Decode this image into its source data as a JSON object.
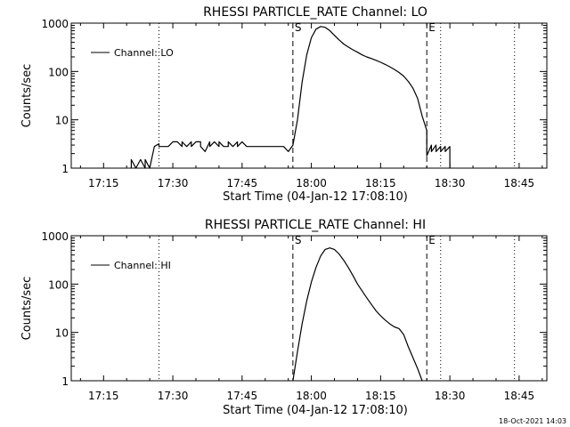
{
  "timestamp": "18-Oct-2021 14:03",
  "chart_data": [
    {
      "type": "line",
      "title": "RHESSI PARTICLE_RATE Channel: LO",
      "xlabel": "Start Time (04-Jan-12 17:08:10)",
      "ylabel": "Counts/sec",
      "y_scale": "log",
      "ylim": [
        1,
        1000
      ],
      "xlim": [
        "17:08",
        "18:51"
      ],
      "x_ticks": [
        "17:15",
        "17:30",
        "17:45",
        "18:00",
        "18:15",
        "18:30",
        "18:45"
      ],
      "y_ticks": [
        "1",
        "10",
        "100",
        "1000"
      ],
      "legend": {
        "label": "Channel: LO",
        "position": "top-left"
      },
      "markers": [
        {
          "label": "S",
          "time": "17:56",
          "style": "dashed"
        },
        {
          "label": "E",
          "time": "18:25",
          "style": "dashed"
        },
        {
          "label": "",
          "time": "17:27",
          "style": "dotted"
        },
        {
          "label": "",
          "time": "18:28",
          "style": "dotted"
        },
        {
          "label": "",
          "time": "18:44",
          "style": "dotted"
        }
      ],
      "series": [
        {
          "name": "Channel: LO",
          "x": [
            "17:21",
            "17:21",
            "17:22",
            "17:22",
            "17:23",
            "17:24",
            "17:24",
            "17:25",
            "17:26",
            "17:26",
            "17:27",
            "17:27",
            "17:28",
            "17:29",
            "17:30",
            "17:31",
            "17:32",
            "17:32",
            "17:33",
            "17:34",
            "17:34",
            "17:35",
            "17:36",
            "17:36",
            "17:37",
            "17:38",
            "17:38",
            "17:39",
            "17:40",
            "17:40",
            "17:41",
            "17:42",
            "17:42",
            "17:43",
            "17:44",
            "17:44",
            "17:45",
            "17:46",
            "17:46",
            "17:47",
            "17:48",
            "17:48",
            "17:49",
            "17:50",
            "17:50",
            "17:51",
            "17:52",
            "17:52",
            "17:53",
            "17:54",
            "17:55",
            "17:56",
            "17:57",
            "17:58",
            "17:59",
            "18:00",
            "18:01",
            "18:02",
            "18:03",
            "18:04",
            "18:05",
            "18:06",
            "18:07",
            "18:08",
            "18:09",
            "18:10",
            "18:11",
            "18:12",
            "18:13",
            "18:14",
            "18:15",
            "18:16",
            "18:17",
            "18:18",
            "18:19",
            "18:20",
            "18:21",
            "18:22",
            "18:23",
            "18:24",
            "18:25",
            "18:25",
            "18:26",
            "18:26",
            "18:27",
            "18:27",
            "18:28",
            "18:28",
            "18:29",
            "18:29",
            "18:30",
            "18:30"
          ],
          "y": [
            1.0,
            1.5,
            1.0,
            1.0,
            1.5,
            1.0,
            1.5,
            1.0,
            2.8,
            2.8,
            3.2,
            2.8,
            2.8,
            2.8,
            3.5,
            3.5,
            2.8,
            3.5,
            2.8,
            3.5,
            2.8,
            3.5,
            3.5,
            2.8,
            2.2,
            3.5,
            2.8,
            3.5,
            2.8,
            3.5,
            2.8,
            2.8,
            3.5,
            2.8,
            3.5,
            2.8,
            3.5,
            2.8,
            2.8,
            2.8,
            2.8,
            2.8,
            2.8,
            2.8,
            2.8,
            2.8,
            2.8,
            2.8,
            2.8,
            2.8,
            2.2,
            3.0,
            10,
            60,
            220,
            500,
            750,
            850,
            820,
            700,
            560,
            450,
            370,
            320,
            280,
            250,
            220,
            200,
            185,
            170,
            155,
            140,
            125,
            110,
            95,
            80,
            62,
            45,
            28,
            12,
            6,
            1.8,
            3.0,
            2.2,
            3.0,
            2.2,
            2.8,
            2.2,
            2.8,
            2.2,
            2.8,
            1.0
          ]
        }
      ]
    },
    {
      "type": "line",
      "title": "RHESSI PARTICLE_RATE Channel: HI",
      "xlabel": "Start Time (04-Jan-12 17:08:10)",
      "ylabel": "Counts/sec",
      "y_scale": "log",
      "ylim": [
        1,
        1000
      ],
      "xlim": [
        "17:08",
        "18:51"
      ],
      "x_ticks": [
        "17:15",
        "17:30",
        "17:45",
        "18:00",
        "18:15",
        "18:30",
        "18:45"
      ],
      "y_ticks": [
        "1",
        "10",
        "100",
        "1000"
      ],
      "legend": {
        "label": "Channel: HI",
        "position": "top-left"
      },
      "markers": [
        {
          "label": "S",
          "time": "17:56",
          "style": "dashed"
        },
        {
          "label": "E",
          "time": "18:25",
          "style": "dashed"
        },
        {
          "label": "",
          "time": "17:27",
          "style": "dotted"
        },
        {
          "label": "",
          "time": "18:28",
          "style": "dotted"
        },
        {
          "label": "",
          "time": "18:44",
          "style": "dotted"
        }
      ],
      "series": [
        {
          "name": "Channel: HI",
          "x": [
            "17:56",
            "17:57",
            "17:58",
            "17:59",
            "18:00",
            "18:01",
            "18:02",
            "18:03",
            "18:04",
            "18:05",
            "18:06",
            "18:07",
            "18:08",
            "18:09",
            "18:10",
            "18:11",
            "18:12",
            "18:13",
            "18:14",
            "18:15",
            "18:16",
            "18:17",
            "18:18",
            "18:19",
            "18:20",
            "18:21",
            "18:22",
            "18:23",
            "18:24"
          ],
          "y": [
            1.0,
            4,
            15,
            45,
            110,
            220,
            380,
            520,
            560,
            520,
            420,
            310,
            220,
            150,
            100,
            72,
            52,
            38,
            28,
            22,
            18,
            15,
            13,
            12,
            9,
            5,
            3,
            1.8,
            1.0
          ]
        }
      ]
    }
  ]
}
